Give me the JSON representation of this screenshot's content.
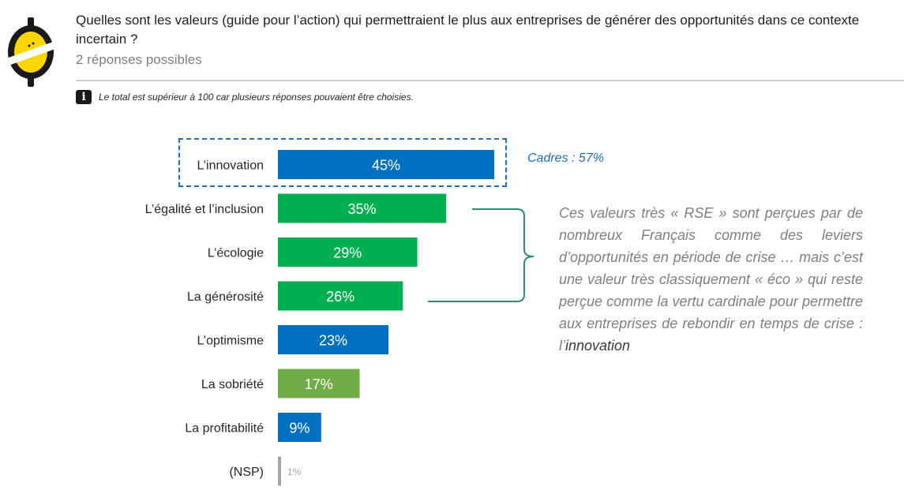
{
  "header": {
    "question": "Quelles sont les valeurs (guide pour l’action) qui permettraient le plus aux entreprises de générer des opportunités dans ce contexte incertain ?",
    "subtitle": "2 réponses possibles",
    "note": "Le total est supérieur à 100 car plusieurs réponses pouvaient être choisies.",
    "info_icon": "info-icon"
  },
  "callout": "Cadres : 57%",
  "commentary": {
    "text": "Ces valeurs très « RSE » sont perçues par de nombreux Français comme des leviers d’opportunités en période de crise … mais c’est une valeur très classiquement « éco » qui reste perçue comme la vertu cardinale pour permettre aux entreprises de rebondir en temps de crise : l’",
    "emphasis": "innovation"
  },
  "colors": {
    "blue": "#0070c0",
    "green": "#00b050",
    "olive": "#70ad47",
    "grey": "#a6a6a6",
    "logo_yellow": "#ffd500"
  },
  "chart_data": {
    "type": "bar",
    "orientation": "horizontal",
    "categories": [
      "L’innovation",
      "L’égalité et l’inclusion",
      "L’écologie",
      "La générosité",
      "L’optimisme",
      "La sobriété",
      "La profitabilité",
      "(NSP)"
    ],
    "values": [
      45,
      35,
      29,
      26,
      23,
      17,
      9,
      1
    ],
    "value_labels": [
      "45%",
      "35%",
      "29%",
      "26%",
      "23%",
      "17%",
      "9%",
      "1%"
    ],
    "bar_colors": [
      "blue",
      "green",
      "green",
      "green",
      "blue",
      "olive",
      "blue",
      "grey"
    ],
    "xlim": [
      0,
      45
    ],
    "grid": false,
    "legend": false
  }
}
